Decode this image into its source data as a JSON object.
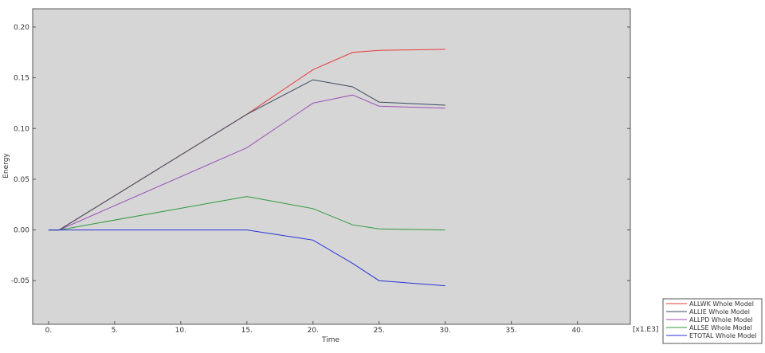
{
  "chart_data": {
    "type": "line",
    "title": "",
    "xlabel": "Time",
    "ylabel": "Energy",
    "x_multiplier_label": "[x1.E3]",
    "xlim": [
      -1.2,
      44
    ],
    "ylim": [
      -0.093,
      0.218
    ],
    "x_ticks": [
      0,
      5,
      10,
      15,
      20,
      25,
      30,
      35,
      40
    ],
    "x_tick_labels": [
      "0.",
      "5.",
      "10.",
      "15.",
      "20.",
      "25.",
      "30.",
      "35.",
      "40."
    ],
    "y_ticks": [
      -0.05,
      0.0,
      0.05,
      0.1,
      0.15,
      0.2
    ],
    "y_tick_labels": [
      "-0.05",
      "0.00",
      "0.05",
      "0.10",
      "0.15",
      "0.20"
    ],
    "grid": false,
    "legend_position": "bottom-right",
    "plot_background": "#d6d6d6",
    "series": [
      {
        "name": "ALLWK Whole Model",
        "color": "#e8393a",
        "x": [
          0,
          0.8,
          15,
          20,
          23,
          25,
          30
        ],
        "y": [
          0.0,
          0.0,
          0.114,
          0.158,
          0.175,
          0.177,
          0.178
        ]
      },
      {
        "name": "ALLIE Whole Model",
        "color": "#3a4a60",
        "x": [
          0,
          0.8,
          15,
          20,
          23,
          25,
          30
        ],
        "y": [
          0.0,
          0.0,
          0.114,
          0.148,
          0.141,
          0.126,
          0.123
        ]
      },
      {
        "name": "ALLPD Whole Model",
        "color": "#9b4fb8",
        "x": [
          0,
          0.8,
          15,
          20,
          23,
          25,
          30
        ],
        "y": [
          0.0,
          0.0,
          0.081,
          0.125,
          0.133,
          0.122,
          0.12
        ]
      },
      {
        "name": "ALLSE Whole Model",
        "color": "#2e9a3a",
        "x": [
          0,
          0.8,
          15,
          20,
          23,
          25,
          30
        ],
        "y": [
          0.0,
          0.0,
          0.033,
          0.021,
          0.005,
          0.001,
          0.0
        ]
      },
      {
        "name": "ETOTAL Whole Model",
        "color": "#2a32d8",
        "x": [
          0,
          0.8,
          15,
          20,
          23,
          25,
          30
        ],
        "y": [
          0.0,
          0.0,
          0.0,
          -0.01,
          -0.033,
          -0.05,
          -0.055
        ]
      }
    ]
  }
}
